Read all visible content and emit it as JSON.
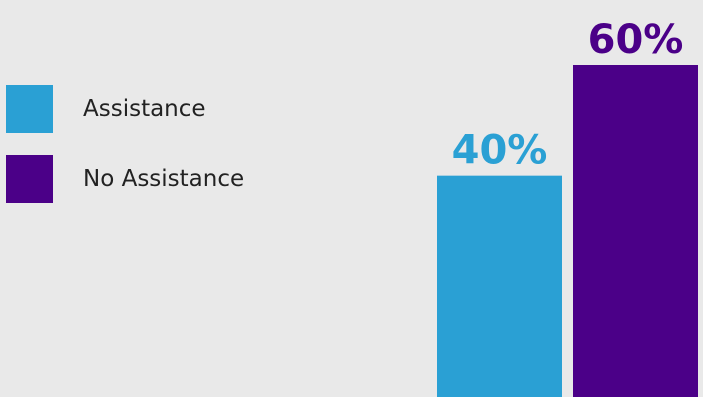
{
  "chart_data": {
    "type": "bar",
    "title": "",
    "xlabel": "",
    "ylabel": "",
    "ylim": [
      0,
      60
    ],
    "grid": false,
    "legend_position": "left",
    "categories": [
      "Assistance",
      "No Assistance"
    ],
    "values": [
      40,
      60
    ],
    "data_labels": [
      "40%",
      "60%"
    ],
    "colors": [
      "#2aa0d4",
      "#4b0088"
    ]
  },
  "legend": {
    "items": [
      {
        "label": "Assistance",
        "color": "#2aa0d4"
      },
      {
        "label": "No Assistance",
        "color": "#4b0088"
      }
    ]
  },
  "background_color": "#e9e9e9"
}
